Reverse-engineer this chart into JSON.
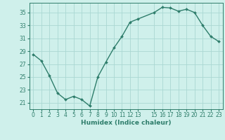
{
  "x": [
    0,
    1,
    2,
    3,
    4,
    5,
    6,
    7,
    8,
    9,
    10,
    11,
    12,
    13,
    15,
    16,
    17,
    18,
    19,
    20,
    21,
    22,
    23
  ],
  "y": [
    28.5,
    27.5,
    25.2,
    22.5,
    21.5,
    22.0,
    21.5,
    20.5,
    25.0,
    27.3,
    29.5,
    31.3,
    33.5,
    34.0,
    35.0,
    35.8,
    35.7,
    35.2,
    35.5,
    35.0,
    33.0,
    31.3,
    30.5
  ],
  "line_color": "#2e7d6b",
  "marker": "D",
  "marker_size": 2.0,
  "bg_color": "#cff0eb",
  "grid_color": "#aad8d3",
  "xlabel": "Humidex (Indice chaleur)",
  "xlim": [
    -0.5,
    23.5
  ],
  "ylim": [
    20.0,
    36.5
  ],
  "yticks": [
    21,
    23,
    25,
    27,
    29,
    31,
    33,
    35
  ],
  "xticks": [
    0,
    1,
    2,
    3,
    4,
    5,
    6,
    7,
    8,
    9,
    10,
    11,
    12,
    13,
    15,
    16,
    17,
    18,
    19,
    20,
    21,
    22,
    23
  ],
  "xtick_labels": [
    "0",
    "1",
    "2",
    "3",
    "4",
    "5",
    "6",
    "7",
    "8",
    "9",
    "10",
    "11",
    "12",
    "13",
    "15",
    "16",
    "17",
    "18",
    "19",
    "20",
    "21",
    "22",
    "23"
  ],
  "xlabel_fontsize": 6.5,
  "tick_fontsize": 5.5,
  "line_width": 1.0
}
